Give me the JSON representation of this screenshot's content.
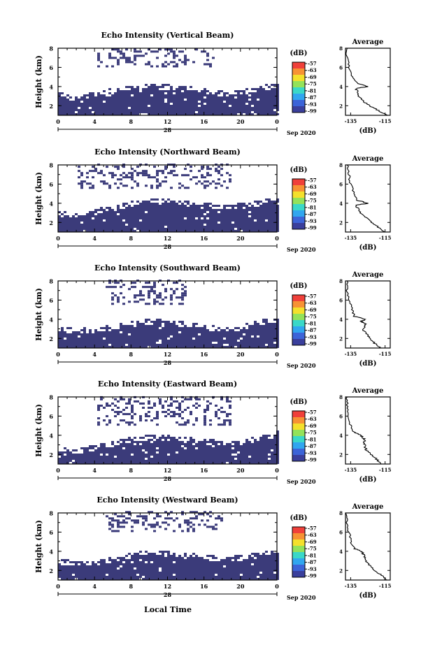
{
  "figure": {
    "xlabel_bottom": "Local Time",
    "colorbar_unit": "(dB)",
    "colorbar_levels": [
      "-57",
      "-63",
      "-69",
      "-75",
      "-81",
      "-87",
      "-93",
      "-99"
    ],
    "colorbar_colors": [
      "#f0403a",
      "#f79234",
      "#f4e02c",
      "#93e25a",
      "#3ad8c8",
      "#31a6ef",
      "#3c64d8",
      "#3a3f9c"
    ],
    "fill_color": "#3b3b7a",
    "avg_title": "Average",
    "avg_xlabel": "(dB)",
    "avg_xticks": [
      "-135",
      "-115"
    ],
    "height_label": "Height (km)",
    "x_ticks": [
      "0",
      "4",
      "8",
      "12",
      "16",
      "20",
      "0"
    ],
    "date_day": "28",
    "date_tail": "Sep 2020"
  },
  "chart_data": [
    {
      "type": "heatmap",
      "title": "Echo Intensity (Vertical Beam)",
      "ylabel": "Height (km)",
      "xlim": [
        0,
        24
      ],
      "ylim": [
        1,
        8
      ],
      "yticks": [
        "2",
        "4",
        "6",
        "8"
      ],
      "lower_layer_top_km": [
        3.0,
        2.6,
        3.2,
        3.4,
        3.7,
        3.9,
        3.8,
        3.6,
        3.4,
        3.1,
        3.2,
        3.7,
        4.0
      ],
      "upper_layer_band_km": [
        6.0,
        7.8
      ],
      "upper_layer_hours": [
        4,
        17
      ],
      "average_profile": {
        "height_km": [
          1.0,
          1.5,
          2.0,
          2.5,
          3.0,
          3.5,
          3.8,
          4.0,
          4.3,
          5.0,
          6.0,
          7.0,
          8.0
        ],
        "db": [
          -114,
          -119,
          -124,
          -128,
          -130,
          -131,
          -132,
          -125,
          -131,
          -134,
          -136,
          -137,
          -137
        ]
      }
    },
    {
      "type": "heatmap",
      "title": "Echo Intensity (Northward Beam)",
      "ylabel": "Height (km)",
      "xlim": [
        0,
        24
      ],
      "ylim": [
        1,
        8
      ],
      "yticks": [
        "2",
        "4",
        "6",
        "8"
      ],
      "lower_layer_top_km": [
        2.8,
        2.6,
        3.0,
        3.4,
        3.8,
        4.0,
        4.0,
        3.8,
        3.6,
        3.4,
        3.6,
        3.9,
        4.2
      ],
      "upper_layer_band_km": [
        5.5,
        8.0
      ],
      "upper_layer_hours": [
        2,
        19
      ],
      "average_profile": {
        "height_km": [
          1.0,
          1.5,
          2.0,
          2.5,
          3.0,
          3.5,
          3.8,
          4.0,
          4.3,
          5.0,
          6.0,
          7.0,
          8.0
        ],
        "db": [
          -115,
          -119,
          -123,
          -126,
          -129,
          -131,
          -132,
          -125,
          -131,
          -133,
          -135,
          -136,
          -137
        ]
      }
    },
    {
      "type": "heatmap",
      "title": "Echo Intensity (Southward Beam)",
      "ylabel": "Height (km)",
      "xlim": [
        0,
        24
      ],
      "ylim": [
        1,
        8
      ],
      "yticks": [
        "2",
        "4",
        "6",
        "8"
      ],
      "lower_layer_top_km": [
        2.8,
        2.6,
        2.8,
        3.0,
        3.4,
        3.6,
        3.5,
        3.3,
        3.0,
        2.8,
        3.0,
        3.5,
        3.8
      ],
      "upper_layer_band_km": [
        5.5,
        8.0
      ],
      "upper_layer_hours": [
        5,
        14
      ],
      "average_profile": {
        "height_km": [
          1.0,
          1.5,
          2.0,
          2.5,
          3.0,
          3.5,
          3.8,
          4.0,
          4.3,
          5.0,
          6.0,
          7.0,
          8.0
        ],
        "db": [
          -118,
          -121,
          -124,
          -126,
          -128,
          -126,
          -129,
          -126,
          -133,
          -134,
          -136,
          -137,
          -137
        ]
      }
    },
    {
      "type": "heatmap",
      "title": "Echo Intensity (Eastward Beam)",
      "ylabel": "Height (km)",
      "xlim": [
        0,
        24
      ],
      "ylim": [
        1,
        8
      ],
      "yticks": [
        "2",
        "4",
        "6",
        "8"
      ],
      "lower_layer_top_km": [
        2.4,
        2.2,
        2.6,
        3.0,
        3.4,
        3.6,
        3.6,
        3.4,
        3.2,
        3.0,
        3.2,
        3.6,
        4.0
      ],
      "upper_layer_band_km": [
        5.0,
        8.0
      ],
      "upper_layer_hours": [
        4,
        19
      ],
      "average_profile": {
        "height_km": [
          1.0,
          1.5,
          2.0,
          2.5,
          3.0,
          3.5,
          3.8,
          4.0,
          4.3,
          5.0,
          6.0,
          7.0,
          8.0
        ],
        "db": [
          -117,
          -120,
          -123,
          -126,
          -127,
          -127,
          -128,
          -129,
          -133,
          -135,
          -136,
          -137,
          -137
        ]
      }
    },
    {
      "type": "heatmap",
      "title": "Echo Intensity (Westward Beam)",
      "ylabel": "Height (km)",
      "xlim": [
        0,
        24
      ],
      "ylim": [
        1,
        8
      ],
      "yticks": [
        "2",
        "4",
        "6",
        "8"
      ],
      "lower_layer_top_km": [
        2.8,
        2.6,
        2.6,
        3.0,
        3.6,
        3.8,
        3.6,
        3.4,
        3.2,
        3.0,
        3.2,
        3.5,
        3.8
      ],
      "upper_layer_band_km": [
        6.0,
        8.0
      ],
      "upper_layer_hours": [
        5,
        18
      ],
      "average_profile": {
        "height_km": [
          1.0,
          1.5,
          2.0,
          2.5,
          3.0,
          3.5,
          3.8,
          4.0,
          4.3,
          5.0,
          6.0,
          7.0,
          8.0
        ],
        "db": [
          -114,
          -117,
          -121,
          -124,
          -126,
          -127,
          -128,
          -129,
          -133,
          -135,
          -136,
          -137,
          -138
        ]
      }
    }
  ]
}
